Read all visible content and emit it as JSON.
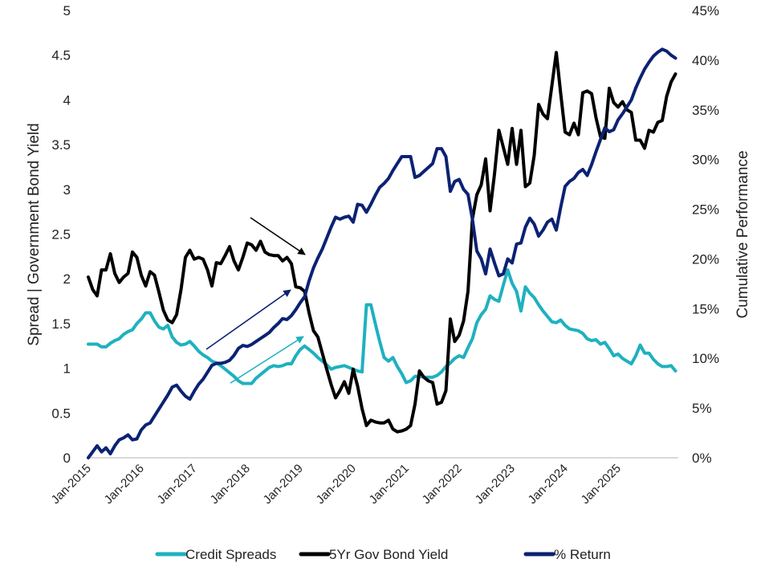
{
  "chart_data": {
    "type": "line",
    "title": "",
    "x_start": "Jan-2015",
    "frequency": "monthly",
    "x_tick_labels": [
      "Jan-2015",
      "Jan-2016",
      "Jan-2017",
      "Jan-2018",
      "Jan-2019",
      "Jan-2020",
      "Jan-2021",
      "Jan-2022",
      "Jan-2023",
      "Jan-2024",
      "Jan-2025"
    ],
    "y_left": {
      "label": "Spread | Government Bond Yield",
      "range": [
        0,
        5
      ],
      "ticks": [
        "0",
        "0.5",
        "1",
        "1.5",
        "2",
        "2.5",
        "3",
        "3.5",
        "4",
        "4.5",
        "5"
      ]
    },
    "y_right": {
      "label": "Cumulative Performance",
      "range": [
        0,
        45
      ],
      "unit": "%",
      "ticks": [
        "0%",
        "5%",
        "10%",
        "15%",
        "20%",
        "25%",
        "30%",
        "35%",
        "40%",
        "45%"
      ]
    },
    "grid": false,
    "legend_placement": "bottom",
    "series": [
      {
        "name": "Credit Spreads",
        "axis": "left",
        "color": "#1fb1bf",
        "values": [
          1.27,
          1.27,
          1.27,
          1.24,
          1.24,
          1.28,
          1.31,
          1.33,
          1.38,
          1.41,
          1.43,
          1.5,
          1.55,
          1.62,
          1.62,
          1.53,
          1.46,
          1.44,
          1.48,
          1.35,
          1.29,
          1.26,
          1.27,
          1.3,
          1.25,
          1.19,
          1.15,
          1.12,
          1.08,
          1.06,
          1.03,
          0.99,
          0.95,
          0.91,
          0.86,
          0.83,
          0.83,
          0.83,
          0.89,
          0.93,
          0.97,
          1.01,
          1.03,
          1.02,
          1.03,
          1.05,
          1.05,
          1.14,
          1.21,
          1.25,
          1.21,
          1.17,
          1.12,
          1.08,
          1.04,
          0.99,
          1.01,
          1.02,
          1.03,
          1.01,
          0.99,
          0.97,
          0.96,
          1.71,
          1.71,
          1.5,
          1.3,
          1.12,
          1.08,
          1.12,
          1.02,
          0.94,
          0.84,
          0.86,
          0.91,
          0.91,
          0.9,
          0.9,
          0.9,
          0.92,
          0.96,
          1.02,
          1.06,
          1.11,
          1.14,
          1.12,
          1.23,
          1.33,
          1.51,
          1.6,
          1.66,
          1.81,
          1.77,
          1.75,
          1.93,
          2.1,
          1.95,
          1.86,
          1.64,
          1.91,
          1.84,
          1.79,
          1.71,
          1.64,
          1.58,
          1.52,
          1.51,
          1.54,
          1.48,
          1.44,
          1.43,
          1.42,
          1.39,
          1.33,
          1.31,
          1.32,
          1.27,
          1.29,
          1.22,
          1.14,
          1.16,
          1.11,
          1.08,
          1.05,
          1.14,
          1.26,
          1.17,
          1.17,
          1.1,
          1.05,
          1.02,
          1.02,
          1.03,
          0.97
        ]
      },
      {
        "name": "5Yr Gov Bond Yield",
        "axis": "left",
        "color": "#000000",
        "values": [
          2.02,
          1.88,
          1.81,
          2.1,
          2.1,
          2.28,
          2.06,
          1.96,
          2.02,
          2.06,
          2.3,
          2.24,
          2.04,
          1.92,
          2.08,
          2.04,
          1.85,
          1.65,
          1.54,
          1.51,
          1.6,
          1.88,
          2.24,
          2.32,
          2.22,
          2.24,
          2.22,
          2.1,
          1.92,
          2.18,
          2.17,
          2.26,
          2.36,
          2.2,
          2.1,
          2.24,
          2.4,
          2.38,
          2.32,
          2.42,
          2.3,
          2.27,
          2.26,
          2.26,
          2.2,
          2.24,
          2.17,
          1.91,
          1.9,
          1.86,
          1.62,
          1.42,
          1.35,
          1.17,
          0.99,
          0.82,
          0.67,
          0.75,
          0.85,
          0.72,
          0.99,
          0.8,
          0.55,
          0.36,
          0.42,
          0.4,
          0.39,
          0.39,
          0.42,
          0.32,
          0.29,
          0.3,
          0.32,
          0.36,
          0.6,
          0.97,
          0.9,
          0.86,
          0.84,
          0.6,
          0.62,
          0.75,
          1.55,
          1.3,
          1.37,
          1.53,
          1.86,
          2.67,
          2.94,
          3.05,
          3.34,
          2.76,
          3.17,
          3.66,
          3.47,
          3.28,
          3.68,
          3.28,
          3.66,
          3.03,
          3.07,
          3.38,
          3.95,
          3.84,
          3.79,
          4.16,
          4.53,
          4.07,
          3.64,
          3.61,
          3.74,
          3.61,
          4.08,
          4.1,
          4.07,
          3.8,
          3.59,
          3.57,
          4.13,
          3.97,
          3.92,
          3.98,
          3.89,
          3.86,
          3.55,
          3.55,
          3.46,
          3.66,
          3.64,
          3.75,
          3.77,
          4.04,
          4.2,
          4.29
        ]
      },
      {
        "name": "% Return",
        "axis": "right",
        "color": "#0b2273",
        "values": [
          0.0,
          0.6,
          1.2,
          0.6,
          1.0,
          0.4,
          1.2,
          1.8,
          2.0,
          2.3,
          1.8,
          1.9,
          2.8,
          3.3,
          3.5,
          4.2,
          4.9,
          5.6,
          6.3,
          7.1,
          7.3,
          6.7,
          6.2,
          5.9,
          6.7,
          7.4,
          7.9,
          8.6,
          9.3,
          9.5,
          9.5,
          9.6,
          9.8,
          10.3,
          11.0,
          11.3,
          11.2,
          11.4,
          11.7,
          12.0,
          12.3,
          12.6,
          13.1,
          13.5,
          14.0,
          13.9,
          14.3,
          14.9,
          15.6,
          16.2,
          17.8,
          19.1,
          20.1,
          21.0,
          22.1,
          23.2,
          24.2,
          24.0,
          24.2,
          24.3,
          23.7,
          25.5,
          25.4,
          24.7,
          25.5,
          26.4,
          27.2,
          27.6,
          28.1,
          28.9,
          29.6,
          30.3,
          30.3,
          30.3,
          28.2,
          28.4,
          28.8,
          29.2,
          29.6,
          31.1,
          31.1,
          30.3,
          26.8,
          27.8,
          28.0,
          27.0,
          26.5,
          24.0,
          20.8,
          20.0,
          18.5,
          21.0,
          19.6,
          18.3,
          18.5,
          20.0,
          19.6,
          21.5,
          21.6,
          23.2,
          24.1,
          23.5,
          22.3,
          22.9,
          23.7,
          24.0,
          22.9,
          25.2,
          27.3,
          27.8,
          28.1,
          28.7,
          29.0,
          28.4,
          29.5,
          30.8,
          32.0,
          33.2,
          32.8,
          33.0,
          34.0,
          34.6,
          35.3,
          36.0,
          37.2,
          38.2,
          39.1,
          39.8,
          40.4,
          40.8,
          41.1,
          40.9,
          40.5,
          40.2
        ]
      }
    ],
    "annotations": [
      {
        "type": "arrow",
        "color": "#000000"
      },
      {
        "type": "arrow",
        "color": "#0b2273"
      },
      {
        "type": "arrow",
        "color": "#1fb1bf"
      }
    ]
  }
}
